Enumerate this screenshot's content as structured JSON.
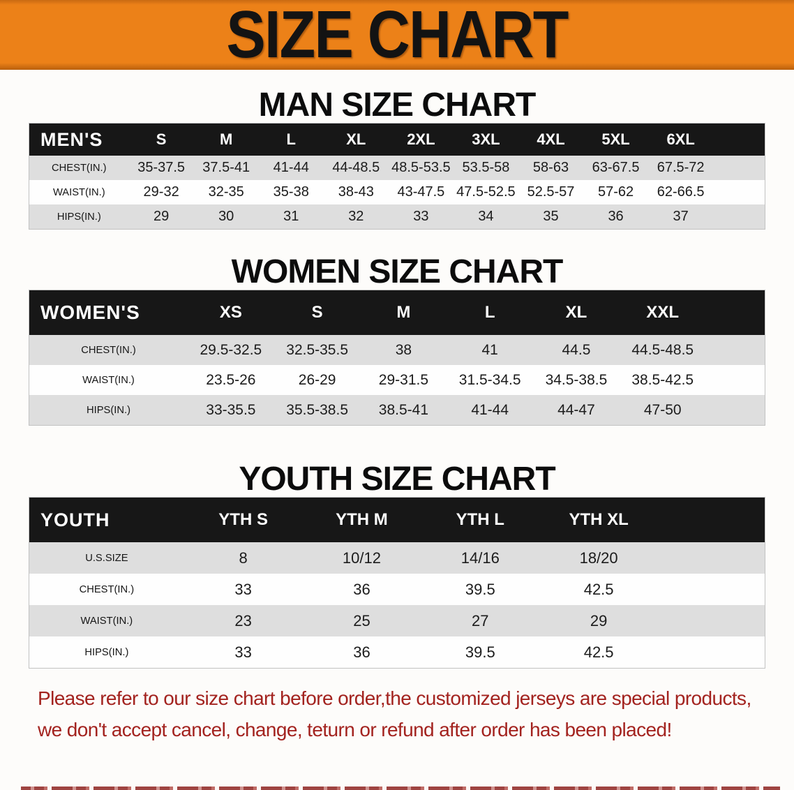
{
  "banner": {
    "title": "SIZE CHART"
  },
  "colors": {
    "banner_orange": "#ec8118",
    "header_black": "#171717",
    "row_gray": "#dedede",
    "disclaimer_red": "#a3231f"
  },
  "sections": [
    {
      "title": "MAN SIZE CHART",
      "table": {
        "header_label": "MEN'S",
        "sizes": [
          "S",
          "M",
          "L",
          "XL",
          "2XL",
          "3XL",
          "4XL",
          "5XL",
          "6XL"
        ],
        "rows": [
          {
            "label": "CHEST(IN.)",
            "values": [
              "35-37.5",
              "37.5-41",
              "41-44",
              "44-48.5",
              "48.5-53.5",
              "53.5-58",
              "58-63",
              "63-67.5",
              "67.5-72"
            ]
          },
          {
            "label": "WAIST(IN.)",
            "values": [
              "29-32",
              "32-35",
              "35-38",
              "38-43",
              "43-47.5",
              "47.5-52.5",
              "52.5-57",
              "57-62",
              "62-66.5"
            ]
          },
          {
            "label": "HIPS(IN.)",
            "values": [
              "29",
              "30",
              "31",
              "32",
              "33",
              "34",
              "35",
              "36",
              "37"
            ]
          }
        ]
      }
    },
    {
      "title": "WOMEN SIZE CHART",
      "table": {
        "header_label": "WOMEN'S",
        "sizes": [
          "XS",
          "S",
          "M",
          "L",
          "XL",
          "XXL"
        ],
        "rows": [
          {
            "label": "CHEST(IN.)",
            "values": [
              "29.5-32.5",
              "32.5-35.5",
              "38",
              "41",
              "44.5",
              "44.5-48.5"
            ]
          },
          {
            "label": "WAIST(IN.)",
            "values": [
              "23.5-26",
              "26-29",
              "29-31.5",
              "31.5-34.5",
              "34.5-38.5",
              "38.5-42.5"
            ]
          },
          {
            "label": "HIPS(IN.)",
            "values": [
              "33-35.5",
              "35.5-38.5",
              "38.5-41",
              "41-44",
              "44-47",
              "47-50"
            ]
          }
        ]
      }
    },
    {
      "title": "YOUTH SIZE CHART",
      "table": {
        "header_label": "YOUTH",
        "sizes": [
          "YTH S",
          "YTH M",
          "YTH L",
          "YTH XL"
        ],
        "rows": [
          {
            "label": "U.S.SIZE",
            "values": [
              "8",
              "10/12",
              "14/16",
              "18/20"
            ]
          },
          {
            "label": "CHEST(IN.)",
            "values": [
              "33",
              "36",
              "39.5",
              "42.5"
            ]
          },
          {
            "label": "WAIST(IN.)",
            "values": [
              "23",
              "25",
              "27",
              "29"
            ]
          },
          {
            "label": "HIPS(IN.)",
            "values": [
              "33",
              "36",
              "39.5",
              "42.5"
            ]
          }
        ]
      }
    }
  ],
  "disclaimer": {
    "line1": "Please refer to our size chart before order,the customized jerseys are special products,",
    "line2": "we don't accept cancel, change, teturn or refund after order has been placed!"
  }
}
